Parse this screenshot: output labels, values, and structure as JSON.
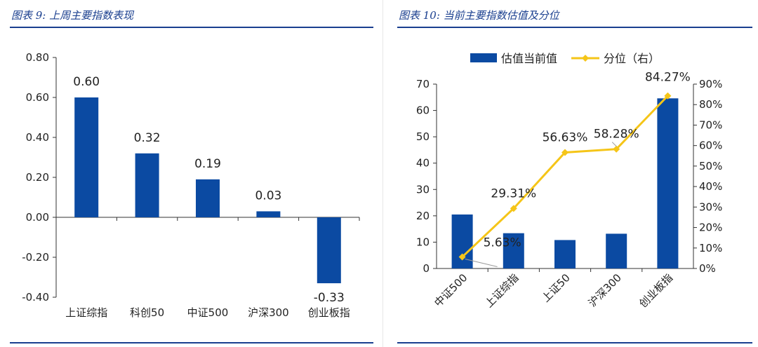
{
  "left": {
    "title": "图表 9:  上周主要指数表现",
    "chart_data": {
      "type": "bar",
      "title": "图表 9:  上周主要指数表现",
      "categories": [
        "上证综指",
        "科创50",
        "中证500",
        "沪深300",
        "创业板指"
      ],
      "values": [
        0.6,
        0.32,
        0.19,
        0.03,
        -0.33
      ],
      "data_labels": [
        "0.60",
        "0.32",
        "0.19",
        "0.03",
        "-0.33"
      ],
      "ylim": [
        -0.4,
        0.8
      ],
      "yticks": [
        0.8,
        0.6,
        0.4,
        0.2,
        0.0,
        -0.2,
        -0.4
      ],
      "ytick_labels": [
        "0.80",
        "0.60",
        "0.40",
        "0.20",
        "0.00",
        "-0.20",
        "-0.40"
      ],
      "grid": false,
      "color": "#0b4aa2"
    }
  },
  "right": {
    "title": "图表 10:  当前主要指数估值及分位",
    "chart_data": {
      "type": "bar",
      "title": "图表 10:  当前主要指数估值及分位",
      "categories": [
        "中证500",
        "上证综指",
        "上证50",
        "沪深300",
        "创业板指"
      ],
      "series": [
        {
          "name": "估值当前值",
          "type": "bar",
          "axis": "left",
          "values": [
            20.5,
            13.4,
            10.8,
            13.2,
            64.6
          ],
          "color": "#0b4aa2"
        },
        {
          "name": "分位（右）",
          "type": "line",
          "axis": "right",
          "values": [
            5.63,
            29.31,
            56.63,
            58.28,
            84.27
          ],
          "data_labels": [
            "5.63%",
            "29.31%",
            "56.63%",
            "58.28%",
            "84.27%"
          ],
          "color": "#f5c518"
        }
      ],
      "ylim_left": [
        0,
        70
      ],
      "yticks_left": [
        0,
        10,
        20,
        30,
        40,
        50,
        60,
        70
      ],
      "ylim_right": [
        0,
        90
      ],
      "yticks_right_labels": [
        "0%",
        "10%",
        "20%",
        "30%",
        "40%",
        "50%",
        "60%",
        "70%",
        "80%",
        "90%"
      ],
      "legend_position": "top",
      "grid": false
    }
  }
}
